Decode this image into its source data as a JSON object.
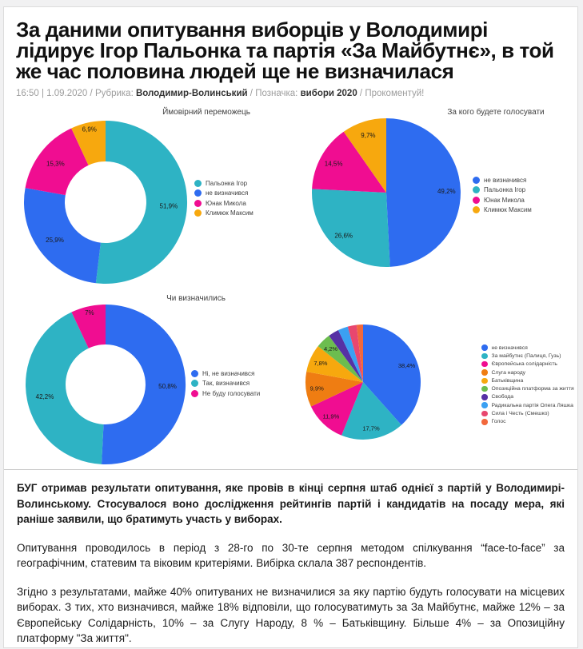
{
  "page": {
    "title_lines": [
      "За даними опитування виборців у Володимирі",
      "лідирує Ігор Пальонка та партія «За Майбутнє», в той",
      "же час половина людей ще не визначилася"
    ],
    "meta": {
      "datetime": "16:50 | 1.09.2020",
      "sep_a": "/",
      "rubric_label": "Рубрика:",
      "rubric": "Володимир-Волинський",
      "sep_b": "/",
      "tag_label": "Позначка:",
      "tag": "вибори 2020",
      "sep_c": "/",
      "comment_link": "Прокоментуй!"
    },
    "paragraphs": {
      "p1": "БУГ отримав результати опитування, яке провів в кінці серпня штаб однієї з партій у Володимирі-Волинському. Стосувалося воно дослідження рейтингів партій і кандидатів на посаду мера, які раніше заявили, що братимуть участь у виборах.",
      "p2": "Опитування проводилось в період з 28-го по 30-те серпня методом спілкування “face-to-face” за географічним, статевим та віковим критеріями. Вибірка склала 387 респондентів.",
      "p3": "Згідно з результатами, майже 40% опитуваних не визначилися за яку партію будуть голосувати на місцевих виборах. З тих, хто визначився, майже 18% відповіли, що голосуватимуть за За Майбутнє, майже 12% – за Європейську Солідарність, 10% – за Слугу Народу, 8 % – Батьківщину. Більше 4% – за Опозиційну платформу \"За життя\"."
    }
  },
  "chart_data": [
    {
      "type": "pie",
      "variant": "donut",
      "title": "Ймовірний переможець",
      "legend_position": "right",
      "slices": [
        {
          "label": "Пальонка Ігор",
          "value": 51.9,
          "label_text": "51,9%",
          "color": "#2eb3c4"
        },
        {
          "label": "не визначився",
          "value": 25.9,
          "label_text": "25,9%",
          "color": "#2e6cf0"
        },
        {
          "label": "Юнак Микола",
          "value": 15.3,
          "label_text": "15,3%",
          "color": "#f00d91"
        },
        {
          "label": "Климюк Максим",
          "value": 6.9,
          "label_text": "6,9%",
          "color": "#f7a80e"
        }
      ]
    },
    {
      "type": "pie",
      "variant": "pie",
      "title": "За кого будете голосувати",
      "legend_position": "right",
      "slices": [
        {
          "label": "не визначився",
          "value": 49.2,
          "label_text": "49,2%",
          "color": "#2e6cf0"
        },
        {
          "label": "Пальонка Ігор",
          "value": 26.6,
          "label_text": "26,6%",
          "color": "#2eb3c4"
        },
        {
          "label": "Юнак Микола",
          "value": 14.5,
          "label_text": "14,5%",
          "color": "#f00d91"
        },
        {
          "label": "Климюк Максим",
          "value": 9.7,
          "label_text": "9,7%",
          "color": "#f7a80e"
        }
      ]
    },
    {
      "type": "pie",
      "variant": "donut",
      "title": "Чи визначились",
      "legend_position": "right",
      "slices": [
        {
          "label": "Ні, не визначився",
          "value": 50.8,
          "label_text": "50,8%",
          "color": "#2e6cf0"
        },
        {
          "label": "Так, визначився",
          "value": 42.2,
          "label_text": "42,2%",
          "color": "#2eb3c4"
        },
        {
          "label": "Не буду голосувати",
          "value": 7,
          "label_text": "7%",
          "color": "#f00d91"
        }
      ]
    },
    {
      "type": "pie",
      "variant": "pie",
      "title": "",
      "legend_position": "right",
      "slices": [
        {
          "label": "не визначився",
          "value": 38.4,
          "label_text": "38,4%",
          "color": "#2e6cf0"
        },
        {
          "label": "За майбутнє (Палиця, Гузь)",
          "value": 17.7,
          "label_text": "17,7%",
          "color": "#2eb3c4"
        },
        {
          "label": "Європейська солідарність",
          "value": 11.9,
          "label_text": "11,9%",
          "color": "#f00d91"
        },
        {
          "label": "Слуга народу",
          "value": 9.9,
          "label_text": "9,9%",
          "color": "#ef7d12"
        },
        {
          "label": "Батьківщина",
          "value": 7.8,
          "label_text": "7,8%",
          "color": "#f7a80e"
        },
        {
          "label": "Опозиційна платформа за життя",
          "value": 4.2,
          "label_text": "4,2%",
          "color": "#6cbd4f"
        },
        {
          "label": "Свобода",
          "value": 3.0,
          "label_text": "",
          "color": "#5631a5"
        },
        {
          "label": "Радикальна партія Олега Ляшка",
          "value": 2.8,
          "label_text": "",
          "color": "#3ba0f2"
        },
        {
          "label": "Сила і Честь (Смешко)",
          "value": 2.5,
          "label_text": "",
          "color": "#e8476f"
        },
        {
          "label": "Голос",
          "value": 1.8,
          "label_text": "",
          "color": "#f2683c"
        }
      ]
    }
  ]
}
